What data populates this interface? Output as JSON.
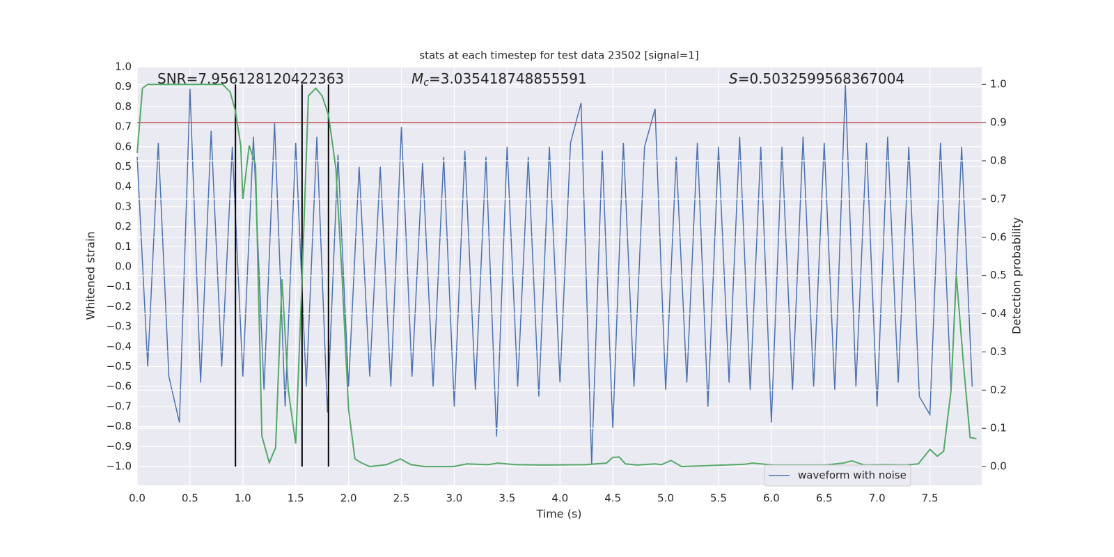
{
  "chart_data": {
    "type": "line",
    "title": "stats at each timestep for test data 23502 [signal=1]",
    "x_label": "Time (s)",
    "y_label": "Whitened strain",
    "y2_label": "Detection probability",
    "annotations": [
      {
        "label": "SNR",
        "value": "=7.956128120422363"
      },
      {
        "label": "M",
        "sub": "c",
        "value": "=3.035418748855591"
      },
      {
        "label": "S",
        "value": "=0.5032599568367004"
      }
    ],
    "xlim": [
      0,
      7.99
    ],
    "xticks": [
      {
        "value": 0,
        "label": "0.0"
      },
      0.5,
      {
        "value": 1,
        "label": "1.0"
      },
      1.5,
      {
        "value": 2,
        "label": "2.0"
      },
      2.5,
      {
        "value": 3,
        "label": "3.0"
      },
      3.5,
      {
        "value": 4,
        "label": "4.0"
      },
      4.5,
      {
        "value": 5,
        "label": "5.0"
      },
      5.5,
      {
        "value": 6,
        "label": "6.0"
      },
      6.5,
      {
        "value": 7,
        "label": "7.0"
      },
      7.5
    ],
    "ylim": [
      -1.094,
      1.0
    ],
    "yticks": [
      {
        "value": -1.0,
        "label": "−1.0"
      },
      {
        "value": -0.9,
        "label": "−0.9"
      },
      {
        "value": -0.8,
        "label": "−0.8"
      },
      {
        "value": -0.7,
        "label": "−0.7"
      },
      {
        "value": -0.6,
        "label": "−0.6"
      },
      {
        "value": -0.5,
        "label": "−0.5"
      },
      {
        "value": -0.4,
        "label": "−0.4"
      },
      {
        "value": -0.3,
        "label": "−0.3"
      },
      {
        "value": -0.2,
        "label": "−0.2"
      },
      {
        "value": -0.1,
        "label": "−0.1"
      },
      {
        "value": 0,
        "label": "0.0"
      },
      0.1,
      0.2,
      0.3,
      0.4,
      0.5,
      0.6,
      0.7,
      0.8,
      0.9,
      {
        "value": 1.0,
        "label": "1.0"
      }
    ],
    "y2lim": [
      -0.049,
      1.046
    ],
    "y2ticks": [
      {
        "value": 0,
        "label": "0.0"
      },
      0.1,
      0.2,
      0.3,
      0.4,
      0.5,
      0.6,
      0.7,
      0.8,
      0.9,
      {
        "value": 1.0,
        "label": "1.0"
      }
    ],
    "grid": true,
    "legend": "lower right",
    "series": [
      {
        "name": "waveform with noise",
        "color": "#4c72b0",
        "axis": "y",
        "x": [
          0.0,
          0.1,
          0.2,
          0.3,
          0.4,
          0.5,
          0.6,
          0.7,
          0.8,
          0.9,
          1.0,
          1.1,
          1.2,
          1.3,
          1.4,
          1.5,
          1.6,
          1.7,
          1.8,
          1.9,
          2.0,
          2.1,
          2.2,
          2.3,
          2.4,
          2.5,
          2.6,
          2.7,
          2.8,
          2.9,
          3.0,
          3.1,
          3.2,
          3.3,
          3.4,
          3.5,
          3.6,
          3.7,
          3.8,
          3.9,
          4.0,
          4.1,
          4.2,
          4.3,
          4.4,
          4.5,
          4.6,
          4.7,
          4.8,
          4.9,
          5.0,
          5.1,
          5.2,
          5.3,
          5.4,
          5.5,
          5.6,
          5.7,
          5.8,
          5.9,
          6.0,
          6.1,
          6.2,
          6.3,
          6.4,
          6.5,
          6.6,
          6.7,
          6.8,
          6.9,
          7.0,
          7.1,
          7.2,
          7.3,
          7.4,
          7.5,
          7.6,
          7.7,
          7.8,
          7.9
        ],
        "values": [
          0.55,
          -0.5,
          0.62,
          -0.55,
          -0.78,
          0.89,
          -0.58,
          0.68,
          -0.5,
          0.6,
          -0.55,
          0.65,
          -0.62,
          0.72,
          -0.7,
          0.62,
          -0.6,
          0.65,
          -0.73,
          0.56,
          -0.6,
          0.5,
          -0.55,
          0.5,
          -0.6,
          0.7,
          -0.55,
          0.52,
          -0.6,
          0.55,
          -0.7,
          0.58,
          -0.62,
          0.55,
          -0.85,
          0.6,
          -0.6,
          0.55,
          -0.65,
          0.6,
          -0.58,
          0.62,
          0.82,
          -0.99,
          0.58,
          -0.81,
          0.62,
          -0.6,
          0.6,
          0.79,
          -0.62,
          0.55,
          -0.58,
          0.62,
          -0.7,
          0.6,
          -0.58,
          0.65,
          -0.62,
          0.6,
          -0.78,
          0.6,
          -0.62,
          0.65,
          -0.6,
          0.62,
          -0.62,
          0.91,
          -0.6,
          0.62,
          -0.7,
          0.65,
          -0.58,
          0.6,
          -0.65,
          -0.74,
          0.62,
          -0.62,
          0.6,
          -0.6
        ]
      },
      {
        "color": "#55a868",
        "axis": "y2",
        "x": [
          0,
          0.05,
          0.1,
          0.81,
          0.88,
          0.93,
          0.98,
          1.0,
          1.06,
          1.12,
          1.18,
          1.25,
          1.31,
          1.37,
          1.43,
          1.5,
          1.56,
          1.62,
          1.69,
          1.75,
          1.81,
          1.88,
          1.94,
          2.0,
          2.06,
          2.12,
          2.2,
          2.36,
          2.49,
          2.59,
          2.72,
          2.99,
          3.12,
          3.32,
          3.41,
          3.58,
          3.84,
          4.24,
          4.44,
          4.5,
          4.56,
          4.62,
          4.73,
          4.9,
          4.96,
          5.05,
          5.15,
          5.56,
          5.75,
          5.82,
          6.02,
          6.51,
          6.68,
          6.76,
          6.88,
          7.07,
          7.27,
          7.39,
          7.5,
          7.57,
          7.63,
          7.7,
          7.75,
          7.82,
          7.88,
          7.94
        ],
        "values": [
          0.82,
          0.99,
          1.0,
          1.0,
          0.98,
          0.93,
          0.84,
          0.7,
          0.84,
          0.79,
          0.08,
          0.01,
          0.05,
          0.49,
          0.2,
          0.06,
          0.49,
          0.97,
          0.99,
          0.97,
          0.92,
          0.78,
          0.49,
          0.15,
          0.02,
          0.01,
          0.0,
          0.005,
          0.02,
          0.005,
          0.0,
          0.0,
          0.007,
          0.005,
          0.009,
          0.005,
          0.004,
          0.005,
          0.009,
          0.024,
          0.025,
          0.007,
          0.004,
          0.007,
          0.005,
          0.016,
          0.0,
          0.004,
          0.006,
          0.009,
          0.004,
          0.004,
          0.009,
          0.015,
          0.004,
          0.005,
          0.004,
          0.007,
          0.045,
          0.027,
          0.04,
          0.2,
          0.5,
          0.26,
          0.076,
          0.073
        ]
      }
    ],
    "threshold": {
      "value": 0.9,
      "axis": "y2",
      "color": "#c44e52"
    },
    "vlines": {
      "x": [
        0.93,
        1.56,
        1.81
      ],
      "y2_range": [
        0,
        1
      ],
      "color": "#000000"
    }
  }
}
